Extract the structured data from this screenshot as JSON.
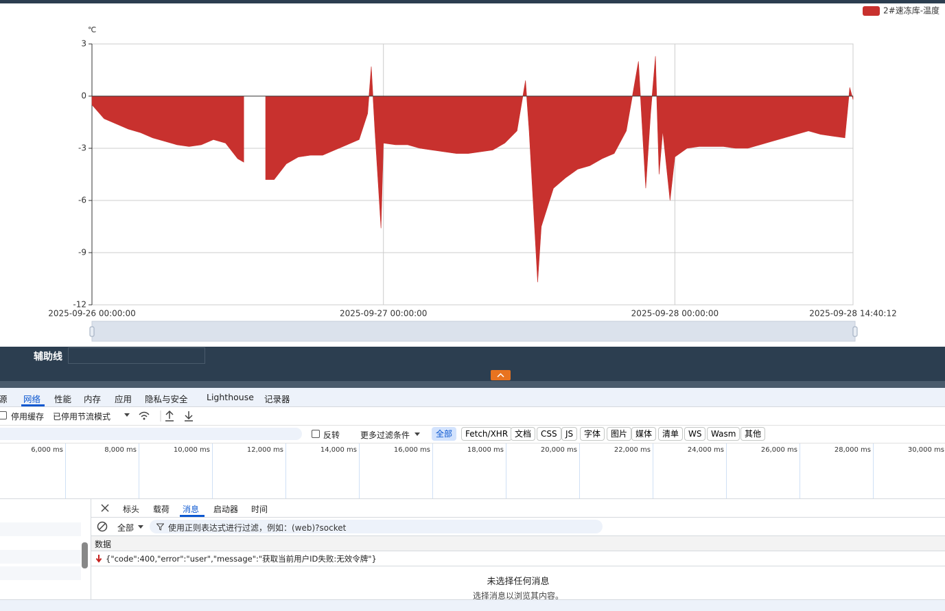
{
  "chart_data": {
    "type": "area",
    "unit_label": "℃",
    "series": [
      {
        "name": "2#速冻库-温度",
        "color": "#c8312e",
        "values": [
          -0.5,
          -1.3,
          -1.6,
          -1.9,
          -2.1,
          -2.4,
          -2.6,
          -2.8,
          -2.9,
          -2.8,
          -2.5,
          -2.7,
          -3.6,
          -3.8,
          null,
          -4.8,
          -4.8,
          -3.9,
          -3.5,
          -3.4,
          -3.4,
          -3.1,
          -2.8,
          -2.5,
          -1.0,
          1.7,
          -2.0,
          -7.6,
          -2.7,
          -2.8,
          -2.8,
          -3.0,
          -3.1,
          -3.2,
          -3.3,
          -3.3,
          -3.2,
          -3.1,
          -2.7,
          -2.0,
          0.9,
          -2.0,
          -10.7,
          -7.5,
          -5.3,
          -4.7,
          -4.2,
          -4.0,
          -3.6,
          -3.3,
          -2.0,
          2.0,
          -5.3,
          -1.0,
          2.3,
          -4.5,
          -2.0,
          -6.0,
          -3.5,
          -3.0,
          -2.9,
          -2.9,
          -2.9,
          -3.0,
          -3.0,
          -2.8,
          -2.6,
          -2.4,
          -2.2,
          -2.0,
          -2.2,
          -2.3,
          -2.4,
          0.5,
          -0.2
        ]
      }
    ],
    "x": [
      "2025-09-26 00:00:00",
      "2025-09-26 01:00:00",
      "2025-09-26 02:00:00",
      "2025-09-26 03:00:00",
      "2025-09-26 04:00:00",
      "2025-09-26 05:00:00",
      "2025-09-26 06:00:00",
      "2025-09-26 07:00:00",
      "2025-09-26 08:00:00",
      "2025-09-26 09:00:00",
      "2025-09-26 10:00:00",
      "2025-09-26 11:00:00",
      "2025-09-26 12:00:00",
      "2025-09-26 12:30:00",
      "2025-09-26 13:30:00",
      "2025-09-26 14:18:00",
      "2025-09-26 15:00:00",
      "2025-09-26 16:00:00",
      "2025-09-26 17:00:00",
      "2025-09-26 18:00:00",
      "2025-09-26 19:00:00",
      "2025-09-26 20:00:00",
      "2025-09-26 21:00:00",
      "2025-09-26 22:00:00",
      "2025-09-26 22:42:00",
      "2025-09-26 23:00:00",
      "2025-09-26 23:18:00",
      "2025-09-26 23:48:00",
      "2025-09-27 00:00:00",
      "2025-09-27 01:00:00",
      "2025-09-27 02:00:00",
      "2025-09-27 03:00:00",
      "2025-09-27 04:00:00",
      "2025-09-27 05:00:00",
      "2025-09-27 06:00:00",
      "2025-09-27 07:00:00",
      "2025-09-27 08:00:00",
      "2025-09-27 09:00:00",
      "2025-09-27 10:00:00",
      "2025-09-27 11:00:00",
      "2025-09-27 11:42:00",
      "2025-09-27 12:00:00",
      "2025-09-27 12:42:00",
      "2025-09-27 13:00:00",
      "2025-09-27 14:00:00",
      "2025-09-27 15:00:00",
      "2025-09-27 16:00:00",
      "2025-09-27 17:00:00",
      "2025-09-27 18:00:00",
      "2025-09-27 19:00:00",
      "2025-09-27 20:00:00",
      "2025-09-27 21:00:00",
      "2025-09-27 21:36:00",
      "2025-09-27 22:00:00",
      "2025-09-27 22:24:00",
      "2025-09-27 22:42:00",
      "2025-09-27 23:00:00",
      "2025-09-27 23:36:00",
      "2025-09-28 00:00:00",
      "2025-09-28 01:00:00",
      "2025-09-28 02:00:00",
      "2025-09-28 03:00:00",
      "2025-09-28 04:00:00",
      "2025-09-28 05:00:00",
      "2025-09-28 06:00:00",
      "2025-09-28 07:00:00",
      "2025-09-28 08:00:00",
      "2025-09-28 09:00:00",
      "2025-09-28 10:00:00",
      "2025-09-28 11:00:00",
      "2025-09-28 12:00:00",
      "2025-09-28 13:00:00",
      "2025-09-28 14:00:00",
      "2025-09-28 14:24:00",
      "2025-09-28 14:40:12"
    ],
    "xlim": [
      "2025-09-26 00:00:00",
      "2025-09-28 14:40:12"
    ],
    "xticks": [
      "2025-09-26 00:00:00",
      "2025-09-27 00:00:00",
      "2025-09-28 00:00:00",
      "2025-09-28 14:40:12"
    ],
    "ylim": [
      -12,
      3
    ],
    "yticks": [
      3,
      0,
      -3,
      -6,
      -9,
      -12
    ],
    "grid": true,
    "legend": "top-right"
  },
  "toolbar": {
    "label": "辅助线"
  },
  "devtools": {
    "tabs": [
      "源",
      "网络",
      "性能",
      "内存",
      "应用",
      "隐私与安全",
      "Lighthouse",
      "记录器"
    ],
    "options": {
      "disable_cache": "停用缓存",
      "throttle": "已停用节流模式"
    },
    "filter": {
      "invert": "反转",
      "more": "更多过滤条件",
      "chips": [
        "全部",
        "Fetch/XHR",
        "文档",
        "CSS",
        "JS",
        "字体",
        "图片",
        "媒体",
        "清单",
        "WS",
        "Wasm",
        "其他"
      ]
    },
    "timeline": [
      "6,000 ms",
      "8,000 ms",
      "10,000 ms",
      "12,000 ms",
      "14,000 ms",
      "16,000 ms",
      "18,000 ms",
      "20,000 ms",
      "22,000 ms",
      "24,000 ms",
      "26,000 ms",
      "28,000 ms",
      "30,000 ms"
    ],
    "detail_tabs": [
      "标头",
      "载荷",
      "消息",
      "启动器",
      "时间"
    ],
    "message_filter": {
      "type": "全部",
      "placeholder": "使用正则表达式进行过滤，例如：(web)?socket"
    },
    "table": {
      "header": "数据",
      "rows": [
        "{\"code\":400,\"error\":\"user\",\"message\":\"获取当前用户ID失败:无效令牌\"}"
      ]
    },
    "empty": {
      "title": "未选择任何消息",
      "hint": "选择消息以浏览其内容。"
    }
  }
}
